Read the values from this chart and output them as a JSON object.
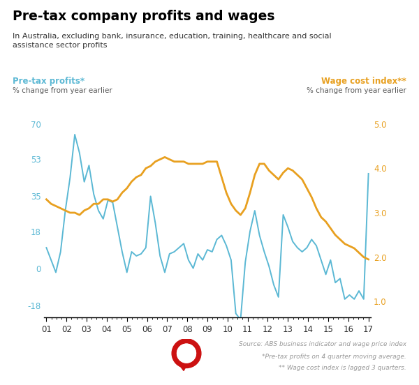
{
  "title": "Pre-tax company profits and wages",
  "subtitle": "In Australia, excluding bank, insurance, education, training, healthcare and social\nassistance sector profits",
  "left_label_title": "Pre-tax profits*",
  "left_label_sub": "% change from year earlier",
  "right_label_title": "Wage cost index**",
  "right_label_sub": "% change from year earlier",
  "source_text": "Source: ABS business indicator and wage price index",
  "footnote1": "*Pre-tax profits on 4 quarter moving average.",
  "footnote2": "** Wage cost index is lagged 3 quarters.",
  "left_color": "#5BB8D4",
  "right_color": "#E8A020",
  "title_color": "#000000",
  "left_yticks": [
    -18,
    0,
    18,
    35,
    53,
    70
  ],
  "right_yticks": [
    1.0,
    2.0,
    3.0,
    4.0,
    5.0
  ],
  "ylim_left": [
    -24,
    78
  ],
  "ylim_right": [
    0.64,
    5.36
  ],
  "x_labels": [
    "01",
    "02",
    "03",
    "04",
    "05",
    "06",
    "07",
    "08",
    "09",
    "10",
    "11",
    "12",
    "13",
    "14",
    "15",
    "16",
    "17"
  ],
  "profits_y": [
    10,
    4,
    -2,
    8,
    28,
    44,
    65,
    56,
    42,
    50,
    36,
    28,
    24,
    33,
    32,
    20,
    8,
    -2,
    8,
    6,
    7,
    10,
    35,
    22,
    6,
    -2,
    7,
    8,
    10,
    12,
    4,
    0,
    7,
    4,
    9,
    8,
    14,
    16,
    11,
    4,
    -22,
    -25,
    3,
    18,
    28,
    16,
    8,
    1,
    -8,
    -14,
    26,
    20,
    13,
    10,
    8,
    10,
    14,
    11,
    4,
    -3,
    4,
    -7,
    -5,
    -15,
    -13,
    -15,
    -11,
    -15,
    46
  ],
  "wages_y": [
    3.3,
    3.2,
    3.15,
    3.1,
    3.05,
    3.0,
    3.0,
    2.95,
    3.05,
    3.1,
    3.2,
    3.2,
    3.3,
    3.3,
    3.25,
    3.3,
    3.45,
    3.55,
    3.7,
    3.8,
    3.85,
    4.0,
    4.05,
    4.15,
    4.2,
    4.25,
    4.2,
    4.15,
    4.15,
    4.15,
    4.1,
    4.1,
    4.1,
    4.1,
    4.15,
    4.15,
    4.15,
    3.8,
    3.45,
    3.2,
    3.05,
    2.95,
    3.1,
    3.45,
    3.85,
    4.1,
    4.1,
    3.95,
    3.85,
    3.75,
    3.9,
    4.0,
    3.95,
    3.85,
    3.75,
    3.55,
    3.35,
    3.1,
    2.9,
    2.8,
    2.65,
    2.5,
    2.4,
    2.3,
    2.25,
    2.2,
    2.1,
    2.0,
    1.95
  ]
}
